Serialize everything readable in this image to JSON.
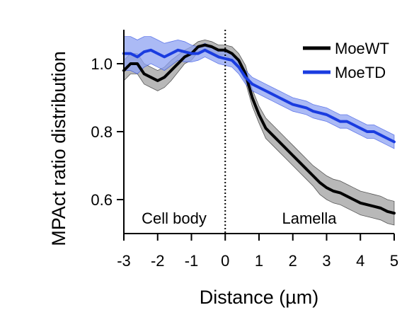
{
  "chart_data": {
    "type": "line",
    "title": "",
    "xlabel": "Distance (µm)",
    "ylabel": "MPAct ratio distribution",
    "xlim": [
      -3,
      5
    ],
    "ylim": [
      0.5,
      1.1
    ],
    "xticks": [
      "-3",
      "-2",
      "-1",
      "0",
      "1",
      "2",
      "3",
      "4",
      "5"
    ],
    "yticks": [
      "0.6",
      "0.8",
      "1.0"
    ],
    "ytick_values": [
      0.6,
      0.8,
      1.0
    ],
    "legend_position": "top-right",
    "vline": {
      "x": 0,
      "style": "dotted"
    },
    "annotations": [
      {
        "text": "Cell body",
        "x": -1.5,
        "y": 0.55
      },
      {
        "text": "Lamella",
        "x": 2.5,
        "y": 0.55
      }
    ],
    "series": [
      {
        "name": "MoeWT",
        "color": "#000000",
        "band_color": "#a0a0a0",
        "x": [
          -3,
          -2.8,
          -2.6,
          -2.4,
          -2.2,
          -2.0,
          -1.8,
          -1.6,
          -1.4,
          -1.2,
          -1.0,
          -0.8,
          -0.6,
          -0.4,
          -0.2,
          0.0,
          0.2,
          0.4,
          0.6,
          0.8,
          1.0,
          1.2,
          1.4,
          1.6,
          1.8,
          2.0,
          2.2,
          2.4,
          2.6,
          2.8,
          3.0,
          3.2,
          3.4,
          3.6,
          3.8,
          4.0,
          4.2,
          4.4,
          4.6,
          4.8,
          5.0
        ],
        "y": [
          0.98,
          1.0,
          1.0,
          0.97,
          0.96,
          0.95,
          0.96,
          0.98,
          1.0,
          1.02,
          1.03,
          1.05,
          1.055,
          1.05,
          1.04,
          1.04,
          1.03,
          1.01,
          0.97,
          0.9,
          0.85,
          0.81,
          0.79,
          0.77,
          0.75,
          0.73,
          0.71,
          0.69,
          0.67,
          0.65,
          0.635,
          0.625,
          0.62,
          0.61,
          0.6,
          0.59,
          0.585,
          0.58,
          0.575,
          0.565,
          0.56
        ],
        "err": [
          0.03,
          0.03,
          0.03,
          0.03,
          0.03,
          0.03,
          0.03,
          0.03,
          0.025,
          0.02,
          0.02,
          0.015,
          0.015,
          0.015,
          0.015,
          0.015,
          0.02,
          0.02,
          0.025,
          0.025,
          0.025,
          0.03,
          0.03,
          0.03,
          0.03,
          0.03,
          0.03,
          0.03,
          0.03,
          0.035,
          0.035,
          0.035,
          0.035,
          0.035,
          0.035,
          0.035,
          0.035,
          0.035,
          0.035,
          0.035,
          0.035
        ]
      },
      {
        "name": "MoeTD",
        "color": "#1a3ce0",
        "band_color": "#8fa3f2",
        "x": [
          -3,
          -2.8,
          -2.6,
          -2.4,
          -2.2,
          -2.0,
          -1.8,
          -1.6,
          -1.4,
          -1.2,
          -1.0,
          -0.8,
          -0.6,
          -0.4,
          -0.2,
          0.0,
          0.2,
          0.4,
          0.6,
          0.8,
          1.0,
          1.2,
          1.4,
          1.6,
          1.8,
          2.0,
          2.2,
          2.4,
          2.6,
          2.8,
          3.0,
          3.2,
          3.4,
          3.6,
          3.8,
          4.0,
          4.2,
          4.4,
          4.6,
          4.8,
          5.0
        ],
        "y": [
          1.03,
          1.03,
          1.02,
          1.035,
          1.04,
          1.03,
          1.02,
          1.03,
          1.04,
          1.035,
          1.03,
          1.03,
          1.04,
          1.03,
          1.02,
          1.015,
          1.01,
          0.99,
          0.96,
          0.94,
          0.93,
          0.92,
          0.91,
          0.9,
          0.89,
          0.88,
          0.875,
          0.87,
          0.86,
          0.855,
          0.85,
          0.84,
          0.83,
          0.83,
          0.82,
          0.81,
          0.8,
          0.8,
          0.79,
          0.78,
          0.77
        ],
        "err": [
          0.05,
          0.05,
          0.05,
          0.045,
          0.04,
          0.04,
          0.04,
          0.035,
          0.03,
          0.03,
          0.025,
          0.02,
          0.02,
          0.02,
          0.02,
          0.02,
          0.02,
          0.02,
          0.02,
          0.02,
          0.02,
          0.02,
          0.02,
          0.02,
          0.02,
          0.02,
          0.02,
          0.02,
          0.02,
          0.02,
          0.02,
          0.02,
          0.02,
          0.02,
          0.02,
          0.02,
          0.02,
          0.02,
          0.02,
          0.02,
          0.02
        ]
      }
    ]
  }
}
